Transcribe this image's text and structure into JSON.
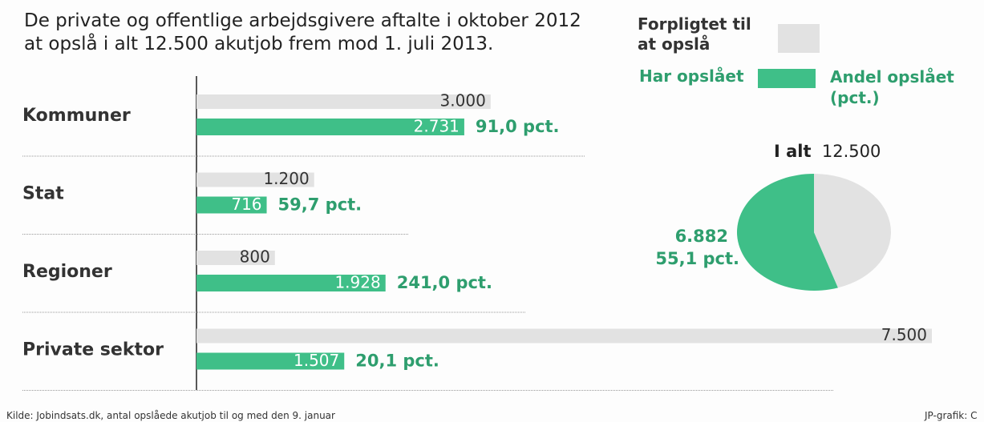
{
  "chart_data": [
    {
      "type": "bar",
      "orientation": "horizontal",
      "title": "De private og offentlige arbejdsgivere aftalte i oktober 2012 at opslå i alt 12.500 akutjob frem mod 1. juli 2013.",
      "categories": [
        "Kommuner",
        "Stat",
        "Regioner",
        "Private sektor"
      ],
      "series": [
        {
          "name": "Forpligtet til at opslå",
          "color": "#e2e2e2",
          "values": [
            3000,
            1200,
            800,
            7500
          ],
          "value_labels": [
            "3.000",
            "1.200",
            "800",
            "7.500"
          ]
        },
        {
          "name": "Har opslået",
          "color": "#3fbf88",
          "values": [
            2731,
            716,
            1928,
            1507
          ],
          "value_labels": [
            "2.731",
            "716",
            "1.928",
            "1.507"
          ]
        }
      ],
      "shares": {
        "name": "Andel opslået (pct.)",
        "color": "#2e9e6e",
        "values": [
          91.0,
          59.7,
          241.0,
          20.1
        ],
        "value_labels": [
          "91,0 pct.",
          "59,7 pct.",
          "241,0 pct.",
          "20,1 pct."
        ]
      },
      "source": "Kilde: Jobindsats.dk, antal opslåede akutjob til og med den 9. januar",
      "credit": "JP-grafik: C"
    },
    {
      "type": "pie",
      "title": "I alt",
      "total": 12500,
      "total_label": "12.500",
      "values": [
        6882,
        5618
      ],
      "colors": [
        "#3fbf88",
        "#e2e2e2"
      ],
      "value_labels": [
        "6.882",
        null
      ],
      "percent_labels": [
        "55,1 pct.",
        null
      ]
    }
  ]
}
